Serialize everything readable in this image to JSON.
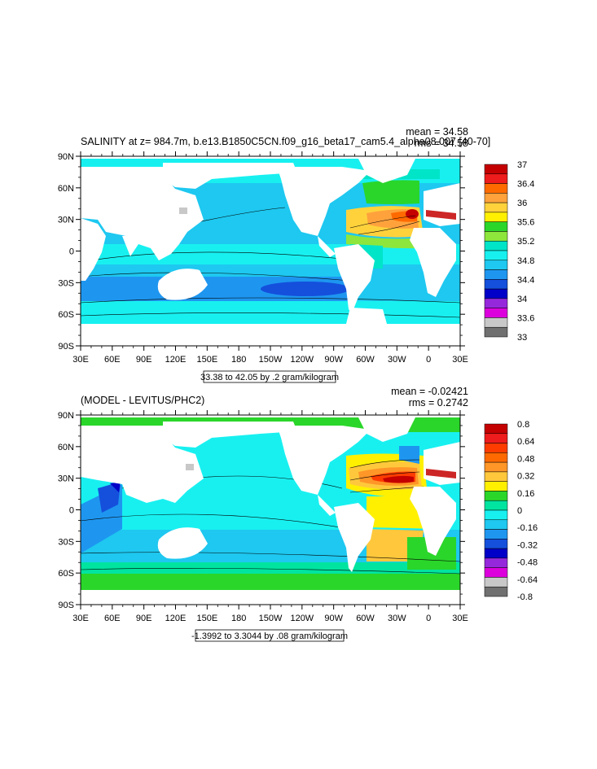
{
  "chart_data": [
    {
      "type": "heatmap",
      "title": "SALINITY at z= 984.7m, b.e13.B1850C5CN.f09_g16_beta17_cam5.4_alpha08.007 [40-70]",
      "stats": {
        "mean": "mean = 34.58",
        "rms": "rms = 34.58"
      },
      "contour_info": "33.38 to 42.05 by .2 gram/kilogram",
      "x_tick_labels": [
        "30E",
        "60E",
        "90E",
        "120E",
        "150E",
        "180",
        "150W",
        "120W",
        "90W",
        "60W",
        "30W",
        "0",
        "30E"
      ],
      "y_tick_labels": [
        "90N",
        "60N",
        "30N",
        "0",
        "30S",
        "60S",
        "90S"
      ],
      "colorbar": {
        "labels": [
          "37",
          "36.4",
          "36",
          "35.6",
          "35.2",
          "34.8",
          "34.4",
          "34",
          "33.6",
          "33"
        ],
        "colors": [
          "#c40000",
          "#ee1c1c",
          "#ff6a00",
          "#ffa23c",
          "#ffd23c",
          "#fff000",
          "#2ad62a",
          "#8ee63c",
          "#00e4c8",
          "#18f0f0",
          "#1ec8f0",
          "#1e96f0",
          "#1450dc",
          "#0000c8",
          "#9628dc",
          "#dc00dc",
          "#c8c8c8",
          "#707070"
        ]
      }
    },
    {
      "type": "heatmap",
      "title": "(MODEL - LEVITUS/PHC2)",
      "stats": {
        "mean": "mean = -0.02421",
        "rms": "rms = 0.2742"
      },
      "contour_info": "-1.3992 to 3.3044 by .08 gram/kilogram",
      "x_tick_labels": [
        "30E",
        "60E",
        "90E",
        "120E",
        "150E",
        "180",
        "150W",
        "120W",
        "90W",
        "60W",
        "30W",
        "0",
        "30E"
      ],
      "y_tick_labels": [
        "90N",
        "60N",
        "30N",
        "0",
        "30S",
        "60S",
        "90S"
      ],
      "colorbar": {
        "labels": [
          "0.8",
          "0.64",
          "0.48",
          "0.32",
          "0.16",
          "0",
          "-0.16",
          "-0.32",
          "-0.48",
          "-0.64",
          "-0.8"
        ],
        "colors": [
          "#c40000",
          "#ee1c1c",
          "#ff3c00",
          "#ff6a00",
          "#ff9628",
          "#ffc83c",
          "#fff000",
          "#2ad62a",
          "#00e4a0",
          "#18f0f0",
          "#1ec8f0",
          "#1e96f0",
          "#1450dc",
          "#0000c8",
          "#9628dc",
          "#dc00dc",
          "#c8c8c8",
          "#707070"
        ]
      }
    }
  ]
}
